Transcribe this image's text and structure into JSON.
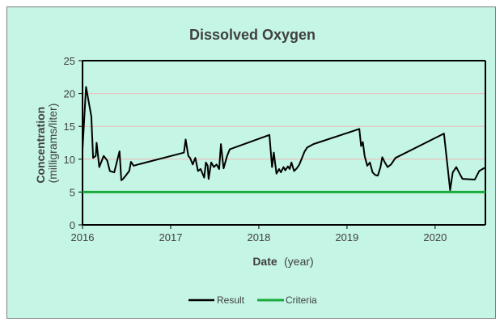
{
  "chart_data": {
    "type": "line",
    "title": "Dissolved Oxygen",
    "xlabel_main": "Date",
    "xlabel_unit": "(year)",
    "ylabel_main": "Concentration",
    "ylabel_unit": "(milligrams/liter)",
    "xlim": [
      2016.0,
      2020.57
    ],
    "ylim": [
      0,
      25
    ],
    "x_ticks": [
      2016,
      2017,
      2018,
      2019,
      2020
    ],
    "y_ticks": [
      0,
      5,
      10,
      15,
      20,
      25
    ],
    "grid": "horizontal",
    "legend_position": "bottom",
    "colors": {
      "result": "#000000",
      "criteria": "#1aab3c",
      "grid": "#f2b8b8",
      "background": "#c5f5e4"
    },
    "series": [
      {
        "name": "Result",
        "x": [
          2016.0,
          2016.04,
          2016.1,
          2016.12,
          2016.15,
          2016.16,
          2016.19,
          2016.24,
          2016.28,
          2016.31,
          2016.36,
          2016.42,
          2016.44,
          2016.46,
          2016.49,
          2016.53,
          2016.55,
          2016.58,
          2016.63,
          2016.66,
          2017.15,
          2017.17,
          2017.2,
          2017.22,
          2017.25,
          2017.28,
          2017.31,
          2017.34,
          2017.38,
          2017.4,
          2017.42,
          2017.43,
          2017.46,
          2017.49,
          2017.52,
          2017.55,
          2017.57,
          2017.6,
          2017.64,
          2017.67,
          2018.12,
          2018.15,
          2018.17,
          2018.2,
          2018.23,
          2018.25,
          2018.28,
          2018.3,
          2018.33,
          2018.35,
          2018.37,
          2018.4,
          2018.43,
          2018.46,
          2018.49,
          2018.52,
          2018.55,
          2018.58,
          2018.62,
          2019.14,
          2019.16,
          2019.18,
          2019.2,
          2019.23,
          2019.26,
          2019.29,
          2019.32,
          2019.35,
          2019.38,
          2019.4,
          2019.43,
          2019.46,
          2019.5,
          2019.55,
          2020.1,
          2020.14,
          2020.17,
          2020.2,
          2020.24,
          2020.27,
          2020.31,
          2020.45,
          2020.5,
          2020.55,
          2020.57
        ],
        "values": [
          11.5,
          21.0,
          16.5,
          10.2,
          10.5,
          12.5,
          8.8,
          10.5,
          9.8,
          8.2,
          8.0,
          11.2,
          6.8,
          7.0,
          7.5,
          8.2,
          9.6,
          9.0,
          9.2,
          9.3,
          11.0,
          13.0,
          10.5,
          10.2,
          9.2,
          10.2,
          8.2,
          8.5,
          7.2,
          9.5,
          9.0,
          7.0,
          9.5,
          8.8,
          9.2,
          8.5,
          12.3,
          8.6,
          10.5,
          11.5,
          13.7,
          8.8,
          11.0,
          7.8,
          8.5,
          8.0,
          8.8,
          8.3,
          8.9,
          8.5,
          9.5,
          8.2,
          8.6,
          9.2,
          10.2,
          11.2,
          11.8,
          12.0,
          12.3,
          14.6,
          12.0,
          12.6,
          10.5,
          9.0,
          9.5,
          8.0,
          7.6,
          7.5,
          8.8,
          10.3,
          9.5,
          8.8,
          9.2,
          10.2,
          13.9,
          9.0,
          5.3,
          8.0,
          8.8,
          8.0,
          7.0,
          6.9,
          8.2,
          8.6,
          8.7
        ]
      },
      {
        "name": "Criteria",
        "x": [
          2016.0,
          2020.57
        ],
        "values": [
          5,
          5
        ]
      }
    ]
  }
}
